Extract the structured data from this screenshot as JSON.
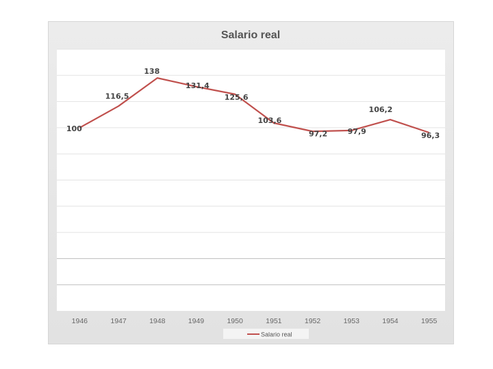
{
  "chart_data": {
    "type": "line",
    "title": "Salario real",
    "xlabel": "",
    "ylabel": "",
    "categories": [
      "1946",
      "1947",
      "1948",
      "1949",
      "1950",
      "1951",
      "1952",
      "1953",
      "1954",
      "1955"
    ],
    "series": [
      {
        "name": "Salario real",
        "color": "#c0504d",
        "values": [
          100,
          116.5,
          138,
          131.4,
          125.6,
          103.6,
          97.2,
          97.9,
          106.2,
          96.3
        ],
        "labels": [
          "100",
          "116,5",
          "138",
          "131,4",
          "125,6",
          "103,6",
          "97,2",
          "97,9",
          "106,2",
          "96,3"
        ]
      }
    ],
    "ylim": [
      -40,
      160
    ],
    "grid": true,
    "legend": "bottom"
  }
}
